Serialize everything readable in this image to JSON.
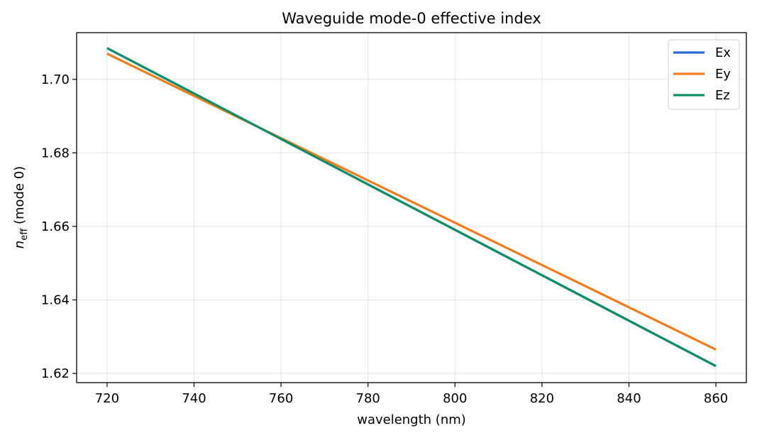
{
  "chart_data": {
    "type": "line",
    "title": "Waveguide mode-0 effective index",
    "xlabel": "wavelength (nm)",
    "ylabel": {
      "symbol": "n",
      "subscript": "eff",
      "suffix": " (mode 0)"
    },
    "xlim": [
      713,
      867
    ],
    "ylim": [
      1.6175,
      1.7127
    ],
    "xticks": [
      720,
      740,
      760,
      780,
      800,
      820,
      840,
      860
    ],
    "xtick_labels": [
      "720",
      "740",
      "760",
      "780",
      "800",
      "820",
      "840",
      "860"
    ],
    "yticks": [
      1.62,
      1.64,
      1.66,
      1.68,
      1.7
    ],
    "ytick_labels": [
      "1.62",
      "1.64",
      "1.66",
      "1.68",
      "1.70"
    ],
    "grid": true,
    "legend_position": "top-right",
    "series": [
      {
        "name": "Ex",
        "color": "#2a6bd6",
        "x": [
          720,
          860
        ],
        "y": [
          1.7085,
          1.622
        ]
      },
      {
        "name": "Ey",
        "color": "#f07c1c",
        "x": [
          720,
          860
        ],
        "y": [
          1.707,
          1.6265
        ]
      },
      {
        "name": "Ez",
        "color": "#0f8f66",
        "x": [
          720,
          860
        ],
        "y": [
          1.7085,
          1.622
        ]
      }
    ]
  }
}
